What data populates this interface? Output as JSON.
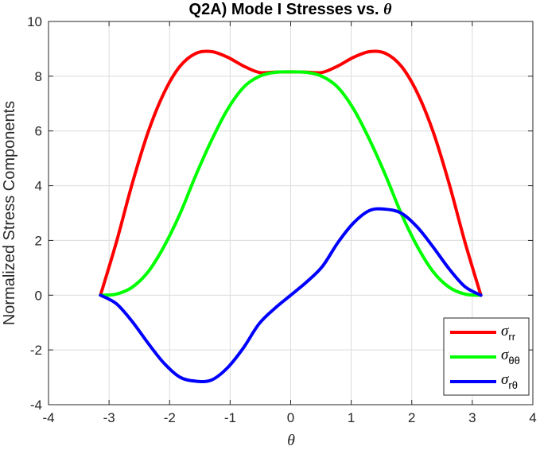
{
  "chart_data": {
    "type": "line",
    "title": "Q2A) Mode I Stresses vs. θ",
    "xlabel": "θ",
    "ylabel": "Normalized Stress Components",
    "xlim": [
      -4,
      4
    ],
    "ylim": [
      -4,
      10
    ],
    "xticks": [
      "-4",
      "-3",
      "-2",
      "-1",
      "0",
      "1",
      "2",
      "3",
      "4"
    ],
    "yticks": [
      "-4",
      "-2",
      "0",
      "2",
      "4",
      "6",
      "8",
      "10"
    ],
    "grid": true,
    "legend_position": "bottom-right",
    "x": [
      -3.14159,
      -2.87979,
      -2.61799,
      -2.35619,
      -2.0944,
      -1.8326,
      -1.5708,
      -1.309,
      -1.0472,
      -0.7854,
      -0.5236,
      -0.2618,
      0,
      0.2618,
      0.5236,
      0.7854,
      1.0472,
      1.309,
      1.5708,
      1.8326,
      2.0944,
      2.35619,
      2.61799,
      2.87979,
      3.14159
    ],
    "series": [
      {
        "name": "σ_rr",
        "color": "#ff0000",
        "values": [
          0,
          1.93,
          4.07,
          5.95,
          7.38,
          8.35,
          8.83,
          8.9,
          8.7,
          8.38,
          8.14,
          8.15,
          8.16,
          8.15,
          8.14,
          8.38,
          8.7,
          8.9,
          8.83,
          8.35,
          7.38,
          5.95,
          4.07,
          1.93,
          0
        ]
      },
      {
        "name": "σ_θθ",
        "color": "#00ff00",
        "values": [
          0,
          0.04,
          0.29,
          0.85,
          1.77,
          2.95,
          4.36,
          5.65,
          6.77,
          7.58,
          7.99,
          8.14,
          8.16,
          8.14,
          7.99,
          7.58,
          6.77,
          5.65,
          4.36,
          2.95,
          1.77,
          0.85,
          0.29,
          0.04,
          0
        ]
      },
      {
        "name": "σ_rθ",
        "color": "#0000ff",
        "values": [
          0,
          -0.31,
          -0.96,
          -1.75,
          -2.48,
          -2.99,
          -3.14,
          -3.1,
          -2.66,
          -1.94,
          -1.05,
          -0.48,
          0,
          0.48,
          1.05,
          1.94,
          2.66,
          3.1,
          3.14,
          2.99,
          2.48,
          1.75,
          0.96,
          0.31,
          0
        ]
      }
    ]
  },
  "legend": {
    "items": [
      {
        "symbol": "σ",
        "sub": "rr",
        "color": "#ff0000"
      },
      {
        "symbol": "σ",
        "sub": "θθ",
        "color": "#00ff00"
      },
      {
        "symbol": "σ",
        "sub": "rθ",
        "color": "#0000ff"
      }
    ]
  },
  "title_parts": {
    "prefix": "Q2A) Mode I Stresses vs. ",
    "symbol": "θ"
  }
}
